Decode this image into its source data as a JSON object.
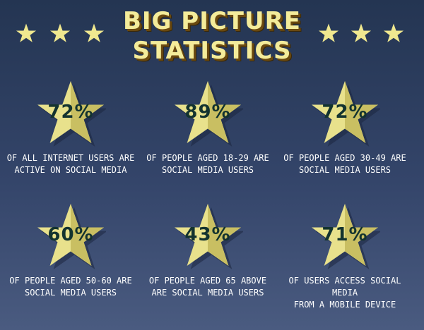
{
  "header": {
    "title_line1": "BIG PICTURE",
    "title_line2": "STATISTICS"
  },
  "colors": {
    "star_fill": "#e8e18c",
    "star_shade": "#c9bf62",
    "star_shadow": "#1b2740",
    "percent_text": "#13332f"
  },
  "stats": [
    {
      "percent": "72%",
      "line1": "OF ALL INTERNET USERS ARE",
      "line2": "ACTIVE ON SOCIAL MEDIA"
    },
    {
      "percent": "89%",
      "line1": "OF PEOPLE AGED 18-29 ARE",
      "line2": "SOCIAL MEDIA USERS"
    },
    {
      "percent": "72%",
      "line1": "OF PEOPLE AGED 30-49 ARE",
      "line2": "SOCIAL MEDIA USERS"
    },
    {
      "percent": "60%",
      "line1": "OF PEOPLE AGED 50-60 ARE",
      "line2": "SOCIAL MEDIA USERS"
    },
    {
      "percent": "43%",
      "line1": "OF PEOPLE AGED 65 ABOVE",
      "line2": "ARE SOCIAL MEDIA USERS"
    },
    {
      "percent": "71%",
      "line1": "OF USERS ACCESS SOCIAL MEDIA",
      "line2": "FROM A MOBILE DEVICE"
    }
  ]
}
